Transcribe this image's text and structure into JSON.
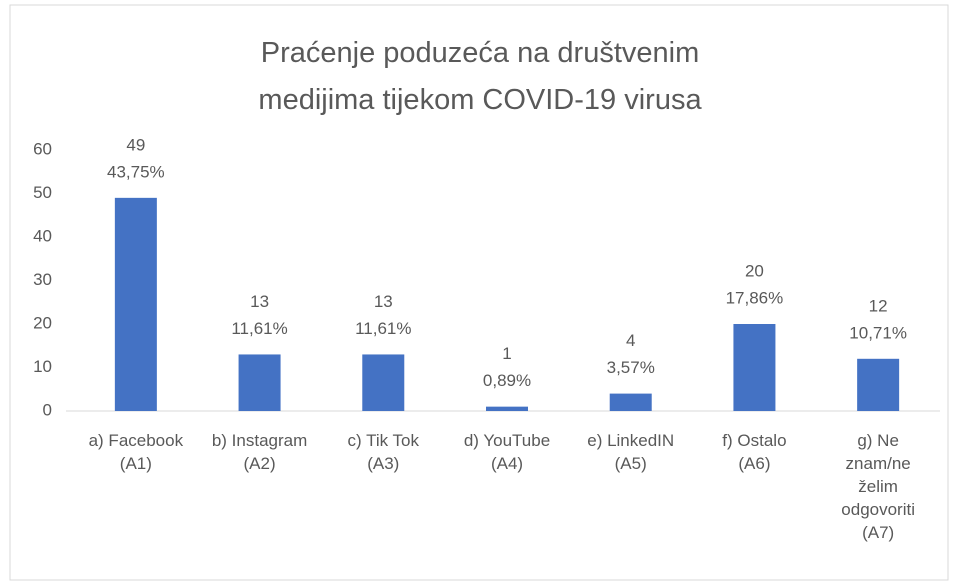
{
  "chart_data": {
    "type": "bar",
    "title": "Praćenje poduzeća na društvenim medijima tijekom COVID-19 virusa",
    "categories": [
      "a) Facebook (A1)",
      "b) Instagram (A2)",
      "c)  Tik Tok (A3)",
      "d)  YouTube (A4)",
      "e)  LinkedIN (A5)",
      "f)  Ostalo (A6)",
      "g)  Ne znam/ne želim odgovoriti (A7)"
    ],
    "values": [
      49,
      13,
      13,
      1,
      4,
      20,
      12
    ],
    "percent_labels": [
      "43,75%",
      "11,61%",
      "11,61%",
      "0,89%",
      "3,57%",
      "17,86%",
      "10,71%"
    ],
    "color": "#4472c4",
    "ylim": [
      0,
      60
    ],
    "yticks": [
      0,
      10,
      20,
      30,
      40,
      50,
      60
    ],
    "grid": false
  }
}
